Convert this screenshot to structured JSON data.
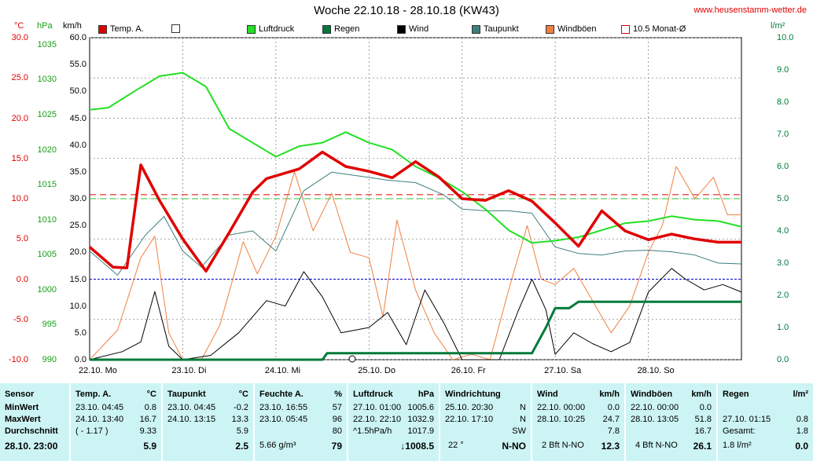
{
  "title": "Woche 22.10.18 - 28.10.18 (KW43)",
  "site": "www.heusenstamm-wetter.de",
  "units": {
    "temp": "°C",
    "press": "hPa",
    "wind": "km/h",
    "rain": "l/m²"
  },
  "legend": [
    {
      "label": "Temp. A.",
      "color": "#e00000",
      "style": "fill"
    },
    {
      "label": "",
      "color": "#ffffff",
      "style": "box"
    },
    {
      "label": "Luftdruck",
      "color": "#22e022",
      "style": "fill"
    },
    {
      "label": "Regen",
      "color": "#007a3a",
      "style": "fill"
    },
    {
      "label": "Wind",
      "color": "#000000",
      "style": "fill"
    },
    {
      "label": "Taupunkt",
      "color": "#3f7e7e",
      "style": "fill"
    },
    {
      "label": "Windböen",
      "color": "#f08040",
      "style": "fill"
    },
    {
      "label": "10.5 Monat-Ø",
      "color": "#e00000",
      "style": "box"
    }
  ],
  "colors": {
    "temp": "#e00000",
    "press": "#22e022",
    "rain": "#007a3a",
    "wind": "#000000",
    "dew": "#3f7e7e",
    "gust": "#f08040",
    "zero": "#0000cc",
    "grid": "#888888",
    "stats_bg": "#cdf4f4"
  },
  "chart_data": {
    "type": "line",
    "x_days": [
      "22.10. Mo",
      "23.10. Di",
      "24.10. Mi",
      "25.10. Do",
      "26.10. Fr",
      "27.10. Sa",
      "28.10. So"
    ],
    "axes": {
      "temp_c": {
        "min": -10,
        "max": 30,
        "ticks": [
          "30.0",
          "25.0",
          "20.0",
          "15.0",
          "10.0",
          "5.0",
          "0.0",
          "-5.0",
          "-10.0"
        ]
      },
      "pressure_hpa": {
        "min": 990,
        "max": 1036,
        "ticks": [
          "1035",
          "1030",
          "1025",
          "1020",
          "1015",
          "1010",
          "1005",
          "1000",
          "995",
          "990"
        ]
      },
      "wind_kmh": {
        "min": 0,
        "max": 60,
        "ticks": [
          "60.0",
          "55.0",
          "50.0",
          "45.0",
          "40.0",
          "35.0",
          "30.0",
          "25.0",
          "20.0",
          "15.0",
          "10.0",
          "5.0",
          "0.0"
        ]
      },
      "rain_lm2": {
        "min": 0,
        "max": 10,
        "ticks": [
          "10.0",
          "9.0",
          "8.0",
          "7.0",
          "6.0",
          "5.0",
          "4.0",
          "3.0",
          "2.0",
          "1.0",
          "0.0"
        ]
      }
    },
    "grid": true,
    "reference_lines": {
      "temp_month_avg_c": 10.5,
      "pressure_month_avg_hpa": 1013
    },
    "series": [
      {
        "name": "Temp. A.",
        "axis": "temp_c",
        "x": [
          0,
          0.25,
          0.4,
          0.55,
          0.75,
          1,
          1.25,
          1.5,
          1.75,
          1.9,
          2.25,
          2.5,
          2.75,
          3,
          3.25,
          3.5,
          3.75,
          4,
          4.25,
          4.5,
          4.75,
          5,
          5.25,
          5.5,
          5.75,
          6,
          6.25,
          6.5,
          6.75,
          7
        ],
        "y": [
          4.0,
          1.5,
          1.4,
          14.2,
          9.8,
          5.0,
          1.0,
          5.8,
          10.8,
          12.5,
          13.7,
          15.8,
          14.0,
          13.4,
          12.6,
          14.6,
          12.7,
          10.0,
          9.8,
          11.0,
          9.7,
          7.0,
          4.1,
          8.5,
          6.0,
          4.9,
          5.6,
          5.0,
          4.6,
          4.6
        ]
      },
      {
        "name": "Luftdruck",
        "axis": "pressure_hpa",
        "x": [
          0,
          0.2,
          0.5,
          0.75,
          1,
          1.25,
          1.5,
          1.75,
          2,
          2.25,
          2.5,
          2.75,
          3,
          3.25,
          3.5,
          3.75,
          4,
          4.25,
          4.5,
          4.75,
          5,
          5.25,
          5.5,
          5.75,
          6,
          6.25,
          6.5,
          6.75,
          7
        ],
        "y": [
          1025.7,
          1026.0,
          1028.5,
          1030.5,
          1031.0,
          1029.0,
          1023.0,
          1021.0,
          1019.0,
          1020.5,
          1021.0,
          1022.5,
          1021.0,
          1020.0,
          1017.6,
          1016.0,
          1014.0,
          1011.5,
          1008.5,
          1006.7,
          1007.0,
          1007.5,
          1008.5,
          1009.5,
          1009.8,
          1010.5,
          1010.0,
          1009.8,
          1009.0
        ]
      },
      {
        "name": "Taupunkt",
        "axis": "temp_c",
        "x": [
          0,
          0.3,
          0.6,
          0.8,
          1,
          1.2,
          1.5,
          1.75,
          2,
          2.3,
          2.6,
          2.9,
          3.2,
          3.5,
          3.8,
          4,
          4.25,
          4.5,
          4.75,
          5,
          5.25,
          5.5,
          5.75,
          6,
          6.25,
          6.5,
          6.75,
          7
        ],
        "y": [
          3.5,
          0.5,
          5.5,
          7.8,
          3.5,
          1.5,
          5.5,
          6.0,
          3.5,
          11.0,
          13.3,
          12.8,
          12.3,
          12.0,
          10.5,
          8.7,
          8.5,
          8.5,
          8.2,
          4.0,
          3.2,
          3.0,
          3.5,
          3.6,
          3.4,
          3.0,
          2.0,
          1.9
        ]
      },
      {
        "name": "Wind",
        "axis": "wind_kmh",
        "x": [
          0,
          0.35,
          0.55,
          0.7,
          0.85,
          1,
          1.3,
          1.6,
          1.9,
          2.1,
          2.3,
          2.5,
          2.7,
          3,
          3.2,
          3.4,
          3.6,
          3.8,
          4,
          4.2,
          4.4,
          4.6,
          4.75,
          4.9,
          5,
          5.2,
          5.4,
          5.6,
          5.8,
          6,
          6.25,
          6.4,
          6.6,
          6.8,
          7
        ],
        "y": [
          0,
          1.5,
          3.3,
          12.7,
          2.5,
          0,
          0.8,
          5.0,
          11.0,
          10.0,
          16.4,
          11.7,
          5.0,
          6.0,
          8.8,
          2.8,
          13.0,
          7.0,
          0,
          0,
          0,
          9.0,
          15.0,
          9.3,
          1.0,
          5.0,
          3.0,
          1.5,
          3.2,
          12.6,
          17.0,
          15.0,
          13.0,
          14.0,
          12.6
        ]
      },
      {
        "name": "Windböen",
        "axis": "wind_kmh",
        "x": [
          0,
          0.3,
          0.55,
          0.7,
          0.85,
          1,
          1.2,
          1.4,
          1.65,
          1.8,
          2,
          2.2,
          2.4,
          2.6,
          2.8,
          3,
          3.15,
          3.3,
          3.5,
          3.7,
          3.9,
          4.1,
          4.3,
          4.5,
          4.7,
          4.85,
          5,
          5.2,
          5.4,
          5.6,
          5.8,
          6,
          6.15,
          6.3,
          6.5,
          6.7,
          6.85,
          7
        ],
        "y": [
          0,
          5.5,
          19.0,
          23.0,
          5.0,
          0,
          0,
          6.5,
          22.0,
          16.0,
          23.0,
          35.0,
          24.0,
          31.0,
          20.0,
          19.0,
          8.0,
          26.0,
          13.0,
          5.0,
          0,
          1.0,
          0,
          13.0,
          25.0,
          15.0,
          14.0,
          17.0,
          11.0,
          5.0,
          10.0,
          20.0,
          25.0,
          36.0,
          30.0,
          34.0,
          27.0,
          27.0
        ]
      },
      {
        "name": "Regen",
        "axis": "rain_lm2",
        "x": [
          0,
          2.5,
          2.55,
          4,
          4.75,
          4.9,
          5,
          5.15,
          5.25,
          5.35,
          6,
          7
        ],
        "y": [
          0,
          0,
          0.2,
          0.2,
          0.2,
          1.0,
          1.6,
          1.6,
          1.8,
          1.8,
          1.8,
          1.8
        ]
      }
    ]
  },
  "stats": {
    "sensor": {
      "header": "Sensor",
      "rows": [
        "MinWert",
        "MaxWert",
        "Durchschnitt"
      ],
      "footer": "28.10. 23:00"
    },
    "temp": {
      "header": "Temp. A.",
      "unit": "°C",
      "min_time": "23.10. 04:45",
      "min_val": "0.8",
      "max_time": "24.10. 13:40",
      "max_val": "16.7",
      "avg_note": "( - 1.17 )",
      "avg_val": "9.33",
      "current": "5.9"
    },
    "dew": {
      "header": "Taupunkt",
      "unit": "°C",
      "min_time": "23.10. 04:45",
      "min_val": "-0.2",
      "max_time": "24.10. 13:15",
      "max_val": "13.3",
      "avg_val": "5.9",
      "current": "2.5"
    },
    "hum": {
      "header": "Feuchte A.",
      "unit": "%",
      "min_time": "23.10. 16:55",
      "min_val": "57",
      "max_time": "23.10. 05:45",
      "max_val": "96",
      "avg_val": "80",
      "abs": "5.66 g/m³",
      "current": "79"
    },
    "press": {
      "header": "Luftdruck",
      "unit": "hPa",
      "min_time": "27.10. 01:00",
      "min_val": "1005.6",
      "max_time": "22.10. 22:10",
      "max_val": "1032.9",
      "trend": "^1.5hPa/h",
      "avg_val": "1017.9",
      "current": "↓1008.5"
    },
    "winddir": {
      "header": "Windrichtung",
      "min_time": "25.10. 20:30",
      "min_val": "N",
      "max_time": "22.10. 17:10",
      "max_val": "N",
      "avg_val": "SW",
      "deg": "22 °",
      "current": "N-NO"
    },
    "wind": {
      "header": "Wind",
      "unit": "km/h",
      "min_time": "22.10. 00:00",
      "min_val": "0.0",
      "max_time": "28.10. 10:25",
      "max_val": "24.7",
      "avg_val": "7.8",
      "bft": "2 Bft N-NO",
      "current": "12.3"
    },
    "gust": {
      "header": "Windböen",
      "unit": "km/h",
      "min_time": "22.10. 00:00",
      "min_val": "0.0",
      "max_time": "28.10. 13:05",
      "max_val": "51.8",
      "avg_val": "16.7",
      "bft": "4 Bft N-NO",
      "current": "26.1"
    },
    "rain": {
      "header": "Regen",
      "unit": "l/m²",
      "max_time": "27.10. 01:15",
      "max_val": "0.8",
      "total_label": "Gesamt:",
      "total_val": "1.8",
      "rate": "1.8 l/m²",
      "current": "0.0"
    }
  }
}
